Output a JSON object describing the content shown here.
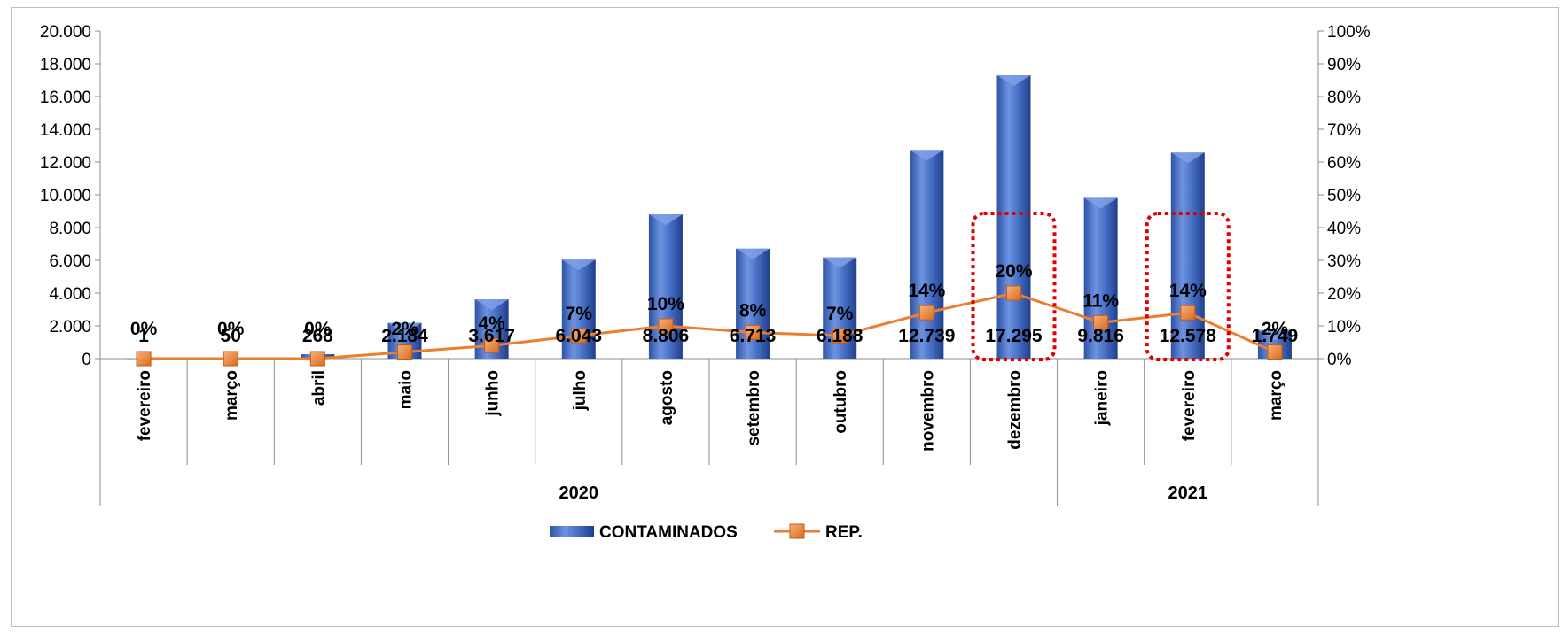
{
  "chart_data": {
    "type": "bar",
    "categories": [
      "fevereiro",
      "março",
      "abril",
      "maio",
      "junho",
      "julho",
      "agosto",
      "setembro",
      "outubro",
      "novembro",
      "dezembro",
      "janeiro",
      "fevereiro",
      "março"
    ],
    "year_groups": [
      {
        "label": "2020",
        "span": 11
      },
      {
        "label": "2021",
        "span": 3
      }
    ],
    "series": [
      {
        "name": "CONTAMINADOS",
        "type": "bar",
        "axis": "left",
        "color": "#4472C4",
        "values": [
          1,
          50,
          268,
          2184,
          3617,
          6043,
          8806,
          6713,
          6188,
          12739,
          17295,
          9816,
          12578,
          1749
        ],
        "labels": [
          "1",
          "50",
          "268",
          "2.184",
          "3.617",
          "6.043",
          "8.806",
          "6.713",
          "6.188",
          "12.739",
          "17.295",
          "9.816",
          "12.578",
          "1.749"
        ]
      },
      {
        "name": "REP.",
        "type": "line",
        "axis": "right",
        "color": "#ED7D31",
        "values": [
          0,
          0,
          0,
          2,
          4,
          7,
          10,
          8,
          7,
          14,
          20,
          11,
          14,
          2
        ],
        "labels": [
          "0%",
          "0%",
          "0%",
          "2%",
          "4%",
          "7%",
          "10%",
          "8%",
          "7%",
          "14%",
          "20%",
          "11%",
          "14%",
          "2%"
        ]
      }
    ],
    "ylim_left": [
      0,
      20000
    ],
    "ylim_right": [
      0,
      100
    ],
    "left_ticks": [
      "0",
      "2.000",
      "4.000",
      "6.000",
      "8.000",
      "10.000",
      "12.000",
      "14.000",
      "16.000",
      "18.000",
      "20.000"
    ],
    "right_ticks": [
      "0%",
      "10%",
      "20%",
      "30%",
      "40%",
      "50%",
      "60%",
      "70%",
      "80%",
      "90%",
      "100%"
    ],
    "highlight_boxes": [
      10,
      12
    ],
    "legend_position": "bottom",
    "grid": false
  }
}
